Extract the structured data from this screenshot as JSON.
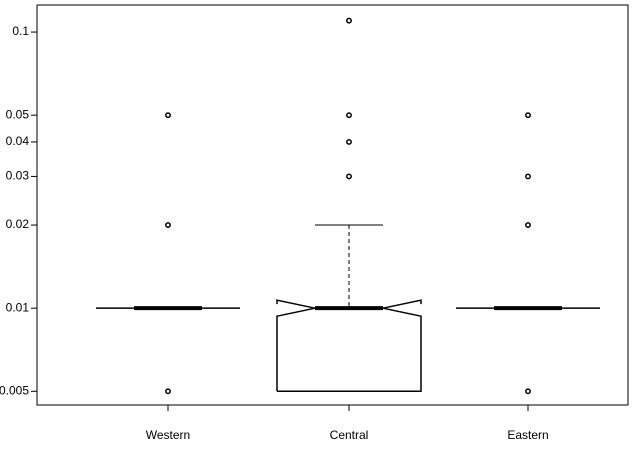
{
  "chart_data": {
    "type": "box",
    "log_y": true,
    "categories": [
      "Western",
      "Central",
      "Eastern"
    ],
    "boxes": [
      {
        "min": 0.01,
        "q1": 0.01,
        "median": 0.01,
        "q3": 0.01,
        "max": 0.01,
        "outliers": [
          0.05,
          0.02,
          0.005
        ],
        "notch": false
      },
      {
        "min": 0.005,
        "q1": 0.005,
        "median": 0.01,
        "q3": 0.01,
        "max": 0.02,
        "outliers": [
          0.11,
          0.05,
          0.04,
          0.03
        ],
        "notch": true
      },
      {
        "min": 0.01,
        "q1": 0.01,
        "median": 0.01,
        "q3": 0.01,
        "max": 0.01,
        "outliers": [
          0.05,
          0.03,
          0.02,
          0.005
        ],
        "notch": false
      }
    ],
    "ylim": [
      0.00446,
      0.1253
    ],
    "yticks": [
      0.005,
      0.01,
      0.02,
      0.03,
      0.04,
      0.05,
      0.1
    ],
    "color": "#000000"
  }
}
